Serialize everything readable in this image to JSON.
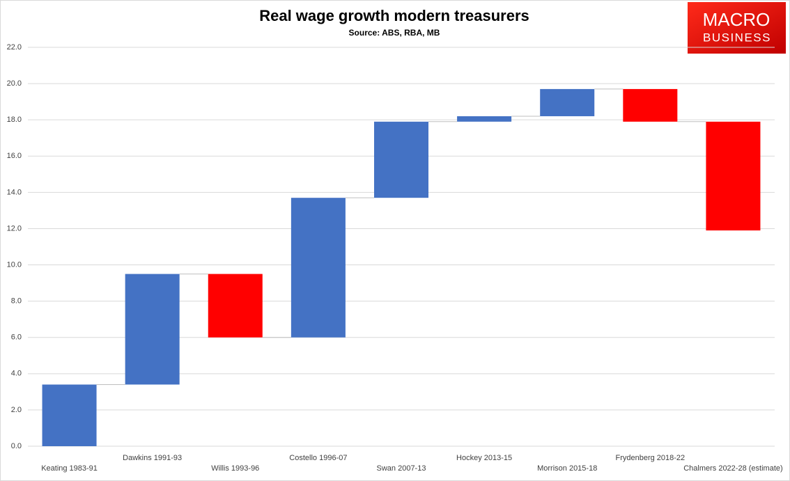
{
  "chart_data": {
    "type": "waterfall",
    "title": "Real wage growth modern treasurers",
    "subtitle": "Source: ABS, RBA, MB",
    "categories": [
      "Keating 1983-91",
      "Dawkins 1991-93",
      "Willis 1993-96",
      "Costello 1996-07",
      "Swan 2007-13",
      "Hockey 2013-15",
      "Morrison 2015-18",
      "Frydenberg 2018-22",
      "Chalmers 2022-28 (estimate)"
    ],
    "values": [
      3.4,
      6.1,
      -3.5,
      7.7,
      4.2,
      0.3,
      1.5,
      -1.8,
      -6.0
    ],
    "increase_color": "#4472c4",
    "decrease_color": "#ff0000",
    "ylim": [
      0,
      22
    ],
    "yticks": [
      {
        "value": 0,
        "label": "0.0"
      },
      {
        "value": 2,
        "label": "2.0"
      },
      {
        "value": 4,
        "label": "4.0"
      },
      {
        "value": 6,
        "label": "6.0"
      },
      {
        "value": 8,
        "label": "8.0"
      },
      {
        "value": 10,
        "label": "10.0"
      },
      {
        "value": 12,
        "label": "12.0"
      },
      {
        "value": 14,
        "label": "14.0"
      },
      {
        "value": 16,
        "label": "16.0"
      },
      {
        "value": 18,
        "label": "18.0"
      },
      {
        "value": 20,
        "label": "20.0"
      },
      {
        "value": 22,
        "label": "22.0"
      }
    ],
    "grid": true
  },
  "logo": {
    "line1": "MACRO",
    "line2": "BUSINESS"
  }
}
